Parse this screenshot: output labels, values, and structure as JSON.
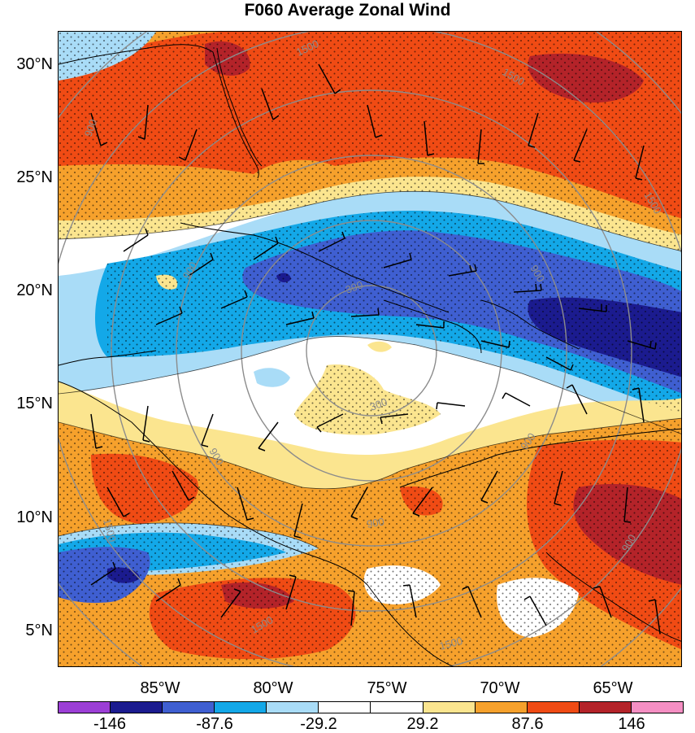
{
  "title": "F060 Average Zonal Wind",
  "lat_labels": [
    "30°N",
    "25°N",
    "20°N",
    "15°N",
    "10°N",
    "5°N"
  ],
  "lon_labels": [
    "85°W",
    "80°W",
    "75°W",
    "70°W",
    "65°W"
  ],
  "contour_labels": [
    "1500",
    "1500",
    "1500",
    "900",
    "900",
    "900",
    "900",
    "900",
    "300",
    "300",
    "1500",
    "1500",
    "1500",
    "900",
    "900"
  ],
  "colorbar": {
    "colors": [
      "#9c3fd6",
      "#1b1b8f",
      "#3f5fd1",
      "#13a8e8",
      "#a9dcf7",
      "#ffffff",
      "#ffffff",
      "#fbe58f",
      "#f6a12c",
      "#f04b14",
      "#b42329",
      "#f58fc3"
    ],
    "tick_labels": [
      "-146",
      "-87.6",
      "-29.2",
      "29.2",
      "87.6",
      "146"
    ]
  },
  "map": {
    "region": "Caribbean / Gulf of Mexico",
    "variable": "Average Zonal Wind",
    "overlays": [
      "wind-barbs",
      "stippling",
      "range-rings",
      "coastlines"
    ]
  }
}
